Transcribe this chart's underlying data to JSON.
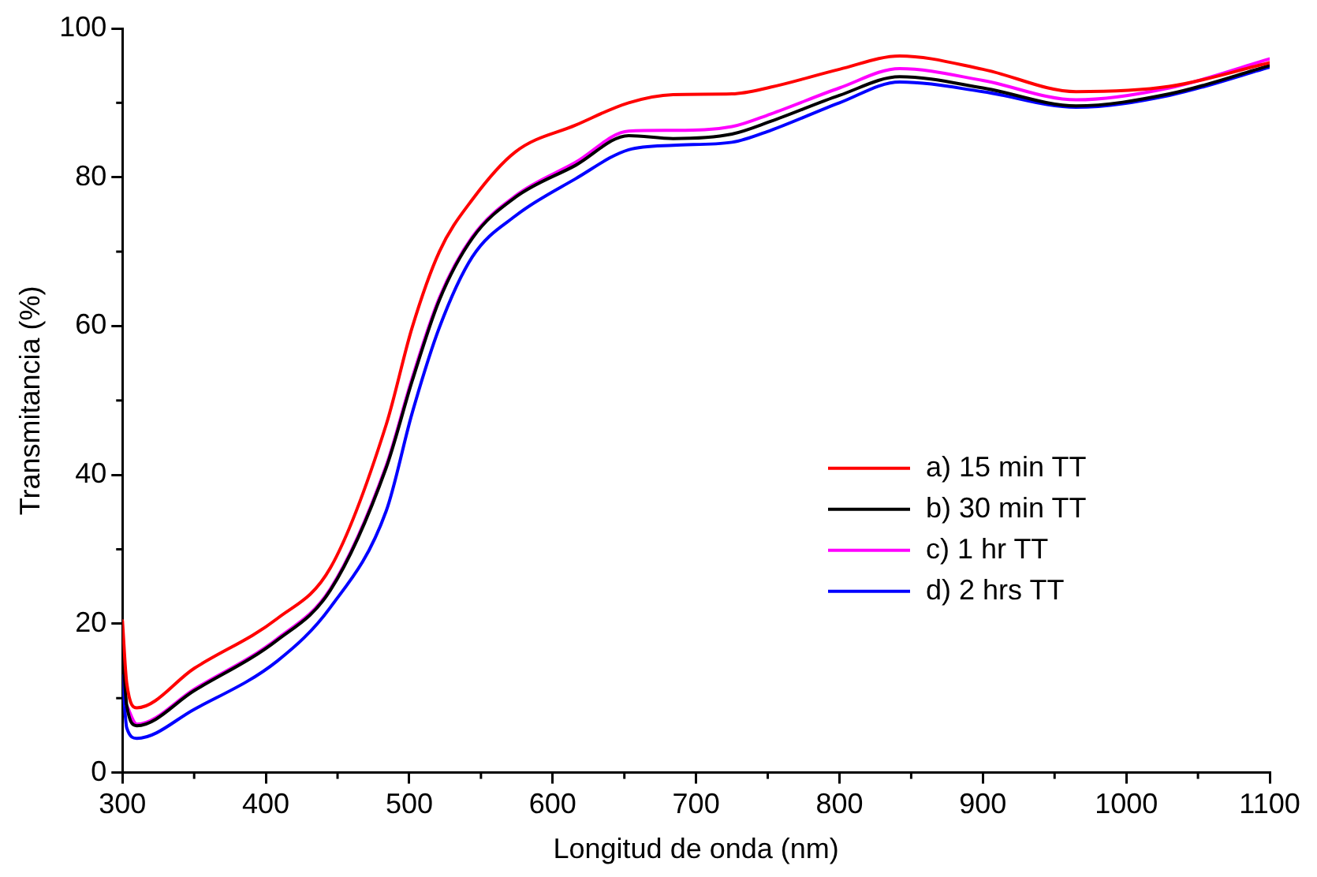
{
  "chart_data": {
    "type": "line",
    "xlabel": "Longitud de onda (nm)",
    "ylabel": "Transmitancia (%)",
    "x": [
      300,
      303,
      310,
      350,
      408,
      445,
      484,
      502,
      521,
      544,
      574,
      616,
      653,
      684,
      725,
      752,
      800,
      842,
      900,
      965,
      1030,
      1100
    ],
    "xlim": [
      300,
      1100
    ],
    "xticks": [
      300,
      400,
      500,
      600,
      700,
      800,
      900,
      1000,
      1100
    ],
    "ylim": [
      0,
      100
    ],
    "yticks": [
      0,
      20,
      40,
      60,
      80,
      100
    ],
    "grid": false,
    "legend": "center right",
    "marker": "none",
    "line_style": "solid",
    "series": [
      {
        "name": "a) 15 min TT",
        "color": "#ff0000",
        "values": [
          20.4,
          12,
          8.7,
          14,
          20.7,
          27.5,
          46.8,
          59.8,
          70,
          77,
          83.4,
          87,
          90,
          91.1,
          91.2,
          92.1,
          94.5,
          96.3,
          94.5,
          91.5,
          92.2,
          95.4
        ]
      },
      {
        "name": "b) 30 min TT",
        "color": "#000000",
        "values": [
          17,
          9,
          6.3,
          11,
          17.8,
          24.5,
          41,
          52.6,
          63.5,
          71.8,
          77.3,
          81.6,
          85.6,
          85.2,
          85.8,
          87.5,
          91,
          93.5,
          92,
          89.6,
          91.2,
          95
        ]
      },
      {
        "name": "c) 1 hr TT",
        "color": "#ff00ff",
        "values": [
          null,
          9,
          6.5,
          11.2,
          18,
          24.7,
          41.3,
          53,
          63.8,
          72,
          77.5,
          82,
          86.2,
          86.3,
          86.8,
          88.5,
          92,
          94.6,
          93,
          90.4,
          92,
          95.9
        ]
      },
      {
        "name": "d) 2 hrs TT",
        "color": "#0000ff",
        "values": [
          13,
          6,
          4.6,
          8.5,
          15,
          22.2,
          35.2,
          48.3,
          59.8,
          69.3,
          74.8,
          79.8,
          83.7,
          84.3,
          84.7,
          86.3,
          90,
          92.8,
          91.5,
          89.4,
          91,
          94.8
        ]
      }
    ]
  }
}
